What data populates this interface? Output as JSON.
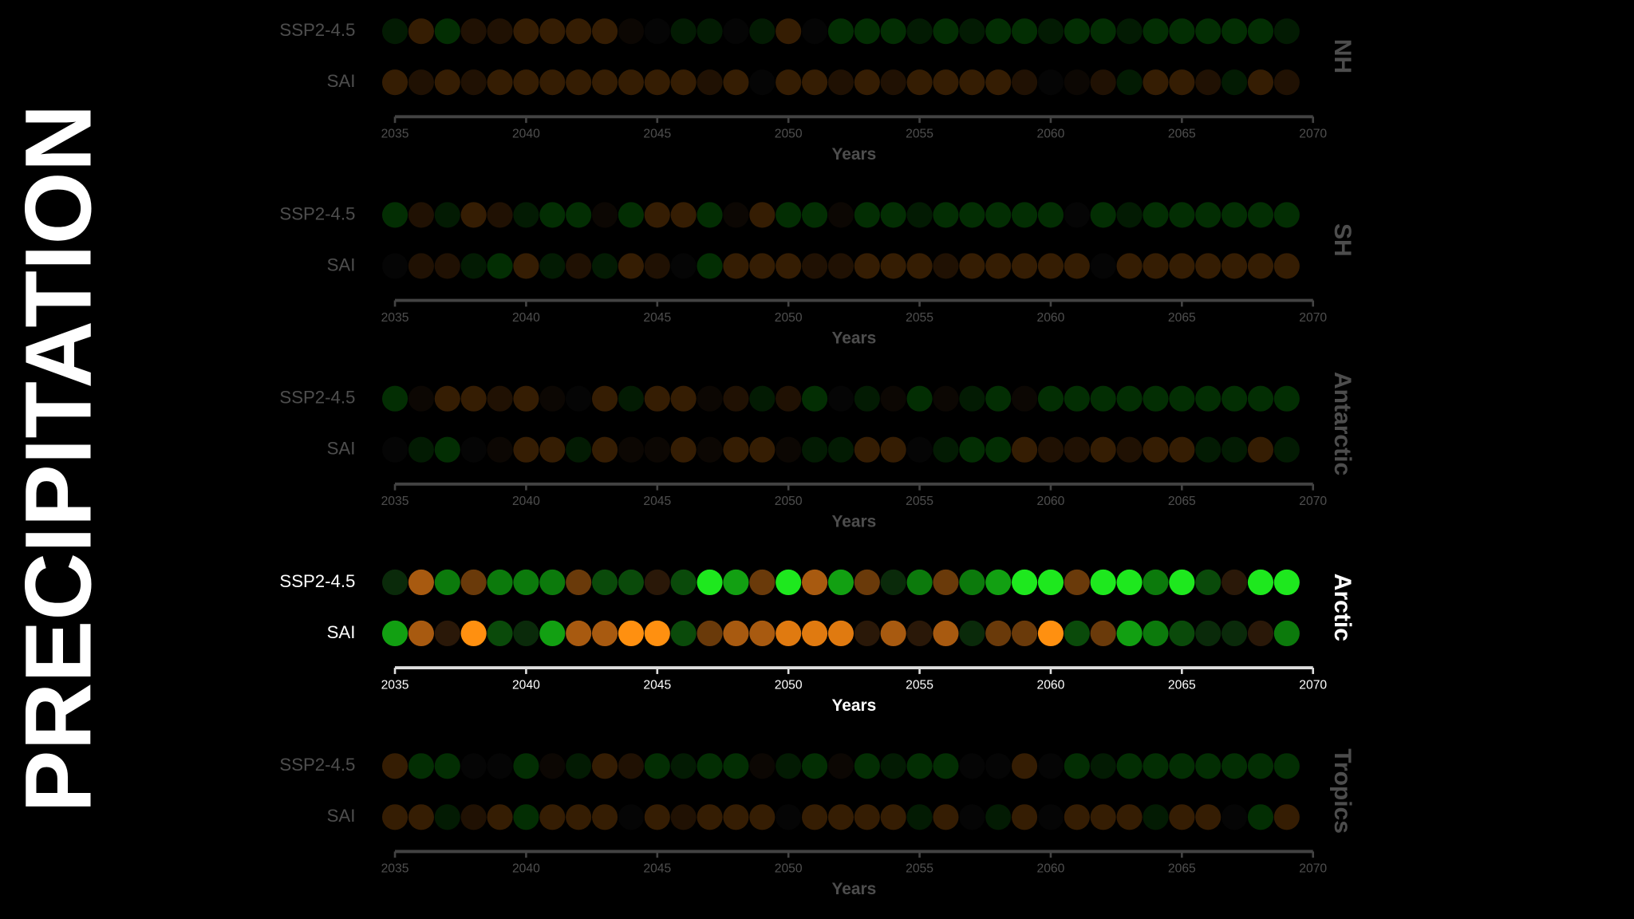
{
  "title": "PRECIPITATION",
  "chart_data": [
    {
      "type": "dotstrip",
      "region": "NH",
      "highlight": false,
      "xlabel": "Years",
      "xlim": [
        2035,
        2070
      ],
      "xticks": [
        2035,
        2040,
        2045,
        2050,
        2055,
        2060,
        2065,
        2070
      ],
      "x": [
        2035,
        2036,
        2037,
        2038,
        2039,
        2040,
        2041,
        2042,
        2043,
        2044,
        2045,
        2046,
        2047,
        2048,
        2049,
        2050,
        2051,
        2052,
        2053,
        2054,
        2055,
        2056,
        2057,
        2058,
        2059,
        2060,
        2061,
        2062,
        2063,
        2064,
        2065,
        2066,
        2067,
        2068,
        2069
      ],
      "series": [
        {
          "name": "SSP2-4.5",
          "colors": [
            "#0a5a0a",
            "#b0600c",
            "#0c9a0c",
            "#6a3a0a",
            "#6a3a0a",
            "#b0600c",
            "#b0600c",
            "#b0600c",
            "#b0600c",
            "#2a1a0a",
            "#111111",
            "#0a5a0a",
            "#0a5a0a",
            "#111111",
            "#0a5a0a",
            "#b0600c",
            "#111111",
            "#0c9a0c",
            "#0c9a0c",
            "#0c9a0c",
            "#0a5a0a",
            "#0c9a0c",
            "#0a5a0a",
            "#0c9a0c",
            "#0c9a0c",
            "#0a5a0a",
            "#0c9a0c",
            "#0c9a0c",
            "#0a5a0a",
            "#0c9a0c",
            "#0c9a0c",
            "#0c9a0c",
            "#0c9a0c",
            "#0c9a0c",
            "#0a5a0a"
          ]
        },
        {
          "name": "SAI",
          "colors": [
            "#b0600c",
            "#6a3a0a",
            "#b0600c",
            "#6a3a0a",
            "#b0600c",
            "#b0600c",
            "#b0600c",
            "#b0600c",
            "#b0600c",
            "#b0600c",
            "#b0600c",
            "#b0600c",
            "#6a3a0a",
            "#b0600c",
            "#111111",
            "#b0600c",
            "#b0600c",
            "#6a3a0a",
            "#b0600c",
            "#6a3a0a",
            "#b0600c",
            "#b0600c",
            "#b0600c",
            "#b0600c",
            "#6a3a0a",
            "#111111",
            "#2a1a0a",
            "#6a3a0a",
            "#0a5a0a",
            "#b0600c",
            "#b0600c",
            "#6a3a0a",
            "#0a5a0a",
            "#b0600c",
            "#6a3a0a"
          ]
        }
      ]
    },
    {
      "type": "dotstrip",
      "region": "SH",
      "highlight": false,
      "xlabel": "Years",
      "xlim": [
        2035,
        2070
      ],
      "xticks": [
        2035,
        2040,
        2045,
        2050,
        2055,
        2060,
        2065,
        2070
      ],
      "x": [
        2035,
        2036,
        2037,
        2038,
        2039,
        2040,
        2041,
        2042,
        2043,
        2044,
        2045,
        2046,
        2047,
        2048,
        2049,
        2050,
        2051,
        2052,
        2053,
        2054,
        2055,
        2056,
        2057,
        2058,
        2059,
        2060,
        2061,
        2062,
        2063,
        2064,
        2065,
        2066,
        2067,
        2068,
        2069
      ],
      "series": [
        {
          "name": "SSP2-4.5",
          "colors": [
            "#0c9a0c",
            "#6a3a0a",
            "#0a5a0a",
            "#b0600c",
            "#6a3a0a",
            "#0a5a0a",
            "#0c9a0c",
            "#0c9a0c",
            "#2a1a0a",
            "#0c9a0c",
            "#b0600c",
            "#b0600c",
            "#0c9a0c",
            "#2a1a0a",
            "#b0600c",
            "#0c9a0c",
            "#0c9a0c",
            "#2a1a0a",
            "#0c9a0c",
            "#0c9a0c",
            "#0a5a0a",
            "#0c9a0c",
            "#0c9a0c",
            "#0c9a0c",
            "#0c9a0c",
            "#0c9a0c",
            "#111111",
            "#0c9a0c",
            "#0a5a0a",
            "#0c9a0c",
            "#0c9a0c",
            "#0c9a0c",
            "#0c9a0c",
            "#0c9a0c",
            "#0c9a0c"
          ]
        },
        {
          "name": "SAI",
          "colors": [
            "#111111",
            "#6a3a0a",
            "#6a3a0a",
            "#0a5a0a",
            "#0c9a0c",
            "#b0600c",
            "#0a5a0a",
            "#6a3a0a",
            "#0a5a0a",
            "#b0600c",
            "#6a3a0a",
            "#111111",
            "#0c9a0c",
            "#b0600c",
            "#b0600c",
            "#b0600c",
            "#6a3a0a",
            "#6a3a0a",
            "#b0600c",
            "#b0600c",
            "#b0600c",
            "#6a3a0a",
            "#b0600c",
            "#b0600c",
            "#b0600c",
            "#b0600c",
            "#b0600c",
            "#111111",
            "#b0600c",
            "#b0600c",
            "#b0600c",
            "#b0600c",
            "#b0600c",
            "#b0600c",
            "#b0600c"
          ]
        }
      ]
    },
    {
      "type": "dotstrip",
      "region": "Antarctic",
      "highlight": false,
      "xlabel": "Years",
      "xlim": [
        2035,
        2070
      ],
      "xticks": [
        2035,
        2040,
        2045,
        2050,
        2055,
        2060,
        2065,
        2070
      ],
      "x": [
        2035,
        2036,
        2037,
        2038,
        2039,
        2040,
        2041,
        2042,
        2043,
        2044,
        2045,
        2046,
        2047,
        2048,
        2049,
        2050,
        2051,
        2052,
        2053,
        2054,
        2055,
        2056,
        2057,
        2058,
        2059,
        2060,
        2061,
        2062,
        2063,
        2064,
        2065,
        2066,
        2067,
        2068,
        2069
      ],
      "series": [
        {
          "name": "SSP2-4.5",
          "colors": [
            "#0c9a0c",
            "#2a1a0a",
            "#b0600c",
            "#b0600c",
            "#6a3a0a",
            "#b0600c",
            "#2a1a0a",
            "#111111",
            "#b0600c",
            "#0a5a0a",
            "#b0600c",
            "#b0600c",
            "#2a1a0a",
            "#6a3a0a",
            "#0a5a0a",
            "#6a3a0a",
            "#0c9a0c",
            "#111111",
            "#0a5a0a",
            "#2a1a0a",
            "#0c9a0c",
            "#2a1a0a",
            "#0a5a0a",
            "#0c9a0c",
            "#2a1a0a",
            "#0c9a0c",
            "#0c9a0c",
            "#0c9a0c",
            "#0c9a0c",
            "#0c9a0c",
            "#0c9a0c",
            "#0c9a0c",
            "#0c9a0c",
            "#0c9a0c",
            "#0c9a0c"
          ]
        },
        {
          "name": "SAI",
          "colors": [
            "#111111",
            "#0a5a0a",
            "#0c9a0c",
            "#111111",
            "#2a1a0a",
            "#b0600c",
            "#b0600c",
            "#0a5a0a",
            "#b0600c",
            "#2a1a0a",
            "#2a1a0a",
            "#b0600c",
            "#2a1a0a",
            "#b0600c",
            "#b0600c",
            "#2a1a0a",
            "#0a5a0a",
            "#0a5a0a",
            "#b0600c",
            "#b0600c",
            "#111111",
            "#0a5a0a",
            "#0c9a0c",
            "#0c9a0c",
            "#b0600c",
            "#6a3a0a",
            "#6a3a0a",
            "#b0600c",
            "#6a3a0a",
            "#b0600c",
            "#b0600c",
            "#0a5a0a",
            "#0a5a0a",
            "#b0600c",
            "#0a5a0a"
          ]
        }
      ]
    },
    {
      "type": "dotstrip",
      "region": "Arctic",
      "highlight": true,
      "xlabel": "Years",
      "xlim": [
        2035,
        2070
      ],
      "xticks": [
        2035,
        2040,
        2045,
        2050,
        2055,
        2060,
        2065,
        2070
      ],
      "x": [
        2035,
        2036,
        2037,
        2038,
        2039,
        2040,
        2041,
        2042,
        2043,
        2044,
        2045,
        2046,
        2047,
        2048,
        2049,
        2050,
        2051,
        2052,
        2053,
        2054,
        2055,
        2056,
        2057,
        2058,
        2059,
        2060,
        2061,
        2062,
        2063,
        2064,
        2065,
        2066,
        2067,
        2068,
        2069
      ],
      "series": [
        {
          "name": "SSP2-4.5",
          "colors": [
            "#0a2a0a",
            "#a85a10",
            "#0c7a0c",
            "#6a3a0a",
            "#0c7a0c",
            "#0c7a0c",
            "#0c7a0c",
            "#6a3a0a",
            "#0a4a0a",
            "#0a4a0a",
            "#2a1808",
            "#0a4a0a",
            "#1ee81e",
            "#12a012",
            "#6a3a0a",
            "#1ee81e",
            "#a85a10",
            "#12a012",
            "#6a3a0a",
            "#0a2a0a",
            "#0c7a0c",
            "#6a3a0a",
            "#0c7a0c",
            "#12a012",
            "#1ee81e",
            "#1ee81e",
            "#6a3a0a",
            "#1ee81e",
            "#1ee81e",
            "#0c7a0c",
            "#1ee81e",
            "#0a4a0a",
            "#2a1808",
            "#1ee81e",
            "#1ee81e"
          ]
        },
        {
          "name": "SAI",
          "colors": [
            "#12a012",
            "#a85a10",
            "#2a1808",
            "#ff9010",
            "#0a4a0a",
            "#0a2a0a",
            "#12a012",
            "#a85a10",
            "#a85a10",
            "#ff9010",
            "#ff9010",
            "#0a4a0a",
            "#6a3a0a",
            "#a85a10",
            "#a85a10",
            "#e07a10",
            "#e07a10",
            "#e07a10",
            "#2a1808",
            "#a85a10",
            "#2a1808",
            "#a85a10",
            "#0a2a0a",
            "#6a3a0a",
            "#6a3a0a",
            "#ff9010",
            "#0a4a0a",
            "#6a3a0a",
            "#12a012",
            "#0c7a0c",
            "#0a4a0a",
            "#0a2a0a",
            "#0a2a0a",
            "#2a1808",
            "#0c7a0c"
          ]
        }
      ]
    },
    {
      "type": "dotstrip",
      "region": "Tropics",
      "highlight": false,
      "xlabel": "Years",
      "xlim": [
        2035,
        2070
      ],
      "xticks": [
        2035,
        2040,
        2045,
        2050,
        2055,
        2060,
        2065,
        2070
      ],
      "x": [
        2035,
        2036,
        2037,
        2038,
        2039,
        2040,
        2041,
        2042,
        2043,
        2044,
        2045,
        2046,
        2047,
        2048,
        2049,
        2050,
        2051,
        2052,
        2053,
        2054,
        2055,
        2056,
        2057,
        2058,
        2059,
        2060,
        2061,
        2062,
        2063,
        2064,
        2065,
        2066,
        2067,
        2068,
        2069
      ],
      "series": [
        {
          "name": "SSP2-4.5",
          "colors": [
            "#b0600c",
            "#0c9a0c",
            "#0c9a0c",
            "#111111",
            "#111111",
            "#0c9a0c",
            "#2a1a0a",
            "#0a5a0a",
            "#b0600c",
            "#6a3a0a",
            "#0c9a0c",
            "#0a5a0a",
            "#0c9a0c",
            "#0c9a0c",
            "#2a1a0a",
            "#0a5a0a",
            "#0c9a0c",
            "#2a1a0a",
            "#0c9a0c",
            "#0a5a0a",
            "#0c9a0c",
            "#0c9a0c",
            "#111111",
            "#111111",
            "#b0600c",
            "#111111",
            "#0c9a0c",
            "#0a5a0a",
            "#0c9a0c",
            "#0c9a0c",
            "#0c9a0c",
            "#0c9a0c",
            "#0c9a0c",
            "#0c9a0c",
            "#0c9a0c"
          ]
        },
        {
          "name": "SAI",
          "colors": [
            "#b0600c",
            "#b0600c",
            "#0a5a0a",
            "#6a3a0a",
            "#b0600c",
            "#0c9a0c",
            "#b0600c",
            "#b0600c",
            "#b0600c",
            "#111111",
            "#b0600c",
            "#6a3a0a",
            "#b0600c",
            "#b0600c",
            "#b0600c",
            "#111111",
            "#b0600c",
            "#b0600c",
            "#b0600c",
            "#b0600c",
            "#0a5a0a",
            "#b0600c",
            "#111111",
            "#0a5a0a",
            "#b0600c",
            "#111111",
            "#b0600c",
            "#b0600c",
            "#b0600c",
            "#0a5a0a",
            "#b0600c",
            "#b0600c",
            "#111111",
            "#0c9a0c",
            "#b0600c"
          ]
        }
      ]
    }
  ]
}
